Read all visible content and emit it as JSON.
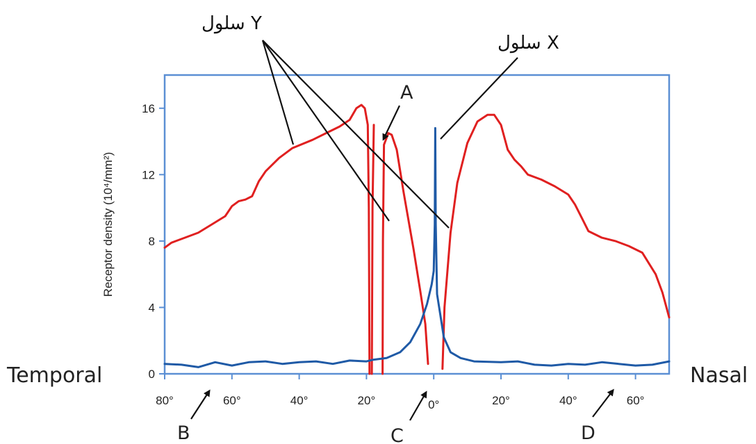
{
  "chart_data": {
    "type": "line",
    "ylabel": "Receptor density (10⁴/mm²)",
    "ylim": [
      0,
      18
    ],
    "yticks": [
      0,
      4,
      8,
      12,
      16
    ],
    "xlim": [
      -80,
      70
    ],
    "xticks": [
      {
        "value": -80,
        "label": "80°"
      },
      {
        "value": -60,
        "label": "60°"
      },
      {
        "value": -40,
        "label": "40°"
      },
      {
        "value": -20,
        "label": "20°"
      },
      {
        "value": 0,
        "label": "0°"
      },
      {
        "value": 20,
        "label": "20°"
      },
      {
        "value": 40,
        "label": "40°"
      },
      {
        "value": 60,
        "label": "60°"
      }
    ],
    "side_labels": {
      "left": "Temporal",
      "right": "Nasal"
    },
    "series": [
      {
        "name": "سلول Y",
        "color": "#e02020",
        "segments": [
          [
            [
              -80,
              7.6
            ],
            [
              -78,
              7.9
            ],
            [
              -74,
              8.2
            ],
            [
              -70,
              8.5
            ],
            [
              -66,
              9.0
            ],
            [
              -62,
              9.5
            ],
            [
              -60,
              10.1
            ],
            [
              -58,
              10.4
            ],
            [
              -56,
              10.5
            ],
            [
              -54,
              10.7
            ],
            [
              -52,
              11.6
            ],
            [
              -50,
              12.2
            ],
            [
              -46,
              13.0
            ],
            [
              -42,
              13.6
            ],
            [
              -36,
              14.1
            ],
            [
              -32,
              14.5
            ],
            [
              -28,
              14.9
            ],
            [
              -25,
              15.3
            ],
            [
              -23,
              16.0
            ],
            [
              -21.5,
              16.2
            ],
            [
              -20.5,
              16.0
            ],
            [
              -19.6,
              15.0
            ],
            [
              -19.3,
              10
            ],
            [
              -19.1,
              0
            ]
          ],
          [
            [
              -18.4,
              0
            ],
            [
              -18.2,
              10
            ],
            [
              -17.8,
              15.0
            ]
          ],
          [
            [
              -15.2,
              0
            ],
            [
              -15.1,
              8
            ],
            [
              -14.8,
              13.8
            ],
            [
              -13.5,
              14.5
            ],
            [
              -12.5,
              14.4
            ],
            [
              -11,
              13.5
            ],
            [
              -9,
              11
            ],
            [
              -6,
              7.5
            ],
            [
              -4,
              5
            ],
            [
              -2.5,
              3
            ],
            [
              -1.7,
              0.6
            ]
          ],
          [
            [
              2.6,
              0.3
            ],
            [
              3.2,
              4
            ],
            [
              5,
              8.5
            ],
            [
              7,
              11.5
            ],
            [
              10,
              13.9
            ],
            [
              13,
              15.2
            ],
            [
              16,
              15.6
            ],
            [
              18,
              15.6
            ],
            [
              20,
              15.0
            ],
            [
              22,
              13.5
            ],
            [
              24,
              12.9
            ],
            [
              26,
              12.5
            ],
            [
              28,
              12.0
            ],
            [
              32,
              11.7
            ],
            [
              36,
              11.3
            ],
            [
              40,
              10.8
            ],
            [
              42,
              10.2
            ],
            [
              44,
              9.4
            ],
            [
              46,
              8.6
            ],
            [
              50,
              8.2
            ],
            [
              54,
              8.0
            ],
            [
              58,
              7.7
            ],
            [
              62,
              7.3
            ],
            [
              66,
              6.0
            ],
            [
              68,
              4.9
            ],
            [
              70,
              3.4
            ]
          ]
        ]
      },
      {
        "name": "سلول X",
        "color": "#1f5aa6",
        "segments": [
          [
            [
              -80,
              0.6
            ],
            [
              -75,
              0.55
            ],
            [
              -70,
              0.4
            ],
            [
              -65,
              0.7
            ],
            [
              -60,
              0.5
            ],
            [
              -55,
              0.7
            ],
            [
              -50,
              0.75
            ],
            [
              -45,
              0.6
            ],
            [
              -40,
              0.7
            ],
            [
              -35,
              0.75
            ],
            [
              -30,
              0.6
            ],
            [
              -25,
              0.8
            ],
            [
              -20,
              0.75
            ],
            [
              -18,
              0.85
            ],
            [
              -14,
              0.95
            ],
            [
              -10,
              1.3
            ],
            [
              -7,
              1.9
            ],
            [
              -4,
              3.0
            ],
            [
              -2,
              4.2
            ],
            [
              -0.6,
              5.4
            ],
            [
              0,
              6.2
            ],
            [
              0.3,
              9.0
            ],
            [
              0.45,
              14.8
            ],
            [
              0.6,
              9.0
            ],
            [
              1,
              4.8
            ],
            [
              2,
              3.5
            ],
            [
              3,
              2.2
            ],
            [
              5,
              1.3
            ],
            [
              8,
              0.95
            ],
            [
              12,
              0.75
            ],
            [
              20,
              0.7
            ],
            [
              25,
              0.75
            ],
            [
              30,
              0.55
            ],
            [
              35,
              0.5
            ],
            [
              40,
              0.6
            ],
            [
              45,
              0.55
            ],
            [
              50,
              0.7
            ],
            [
              55,
              0.6
            ],
            [
              60,
              0.5
            ],
            [
              65,
              0.55
            ],
            [
              70,
              0.75
            ]
          ]
        ]
      }
    ]
  },
  "annotations": {
    "y_cell_label": "سلول Y",
    "x_cell_label": "سلول X",
    "A": "A",
    "B": "B",
    "C": "C",
    "D": "D"
  },
  "colors": {
    "frame": "#5b8fd4",
    "y_cell": "#e02020",
    "x_cell": "#1f5aa6"
  }
}
